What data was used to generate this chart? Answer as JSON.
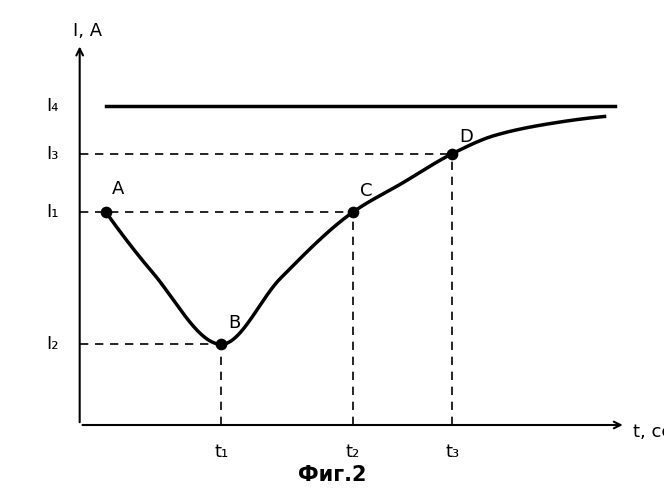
{
  "title": "Фиг.2",
  "xlabel": "t, сек",
  "ylabel": "I, А",
  "background_color": "#ffffff",
  "line_color": "#000000",
  "dashed_color": "#000000",
  "I1": 0.58,
  "I2": 0.22,
  "I3": 0.74,
  "I4": 0.87,
  "t1": 0.27,
  "t2": 0.52,
  "t3": 0.71,
  "point_A_label": "A",
  "point_B_label": "B",
  "point_C_label": "C",
  "point_D_label": "D",
  "I1_label": "I₁",
  "I2_label": "I₂",
  "I3_label": "I₃",
  "I4_label": "I₄",
  "t1_label": "t₁",
  "t2_label": "t₂",
  "t3_label": "t₃",
  "xlim": [
    0,
    1.05
  ],
  "ylim": [
    0,
    1.05
  ]
}
